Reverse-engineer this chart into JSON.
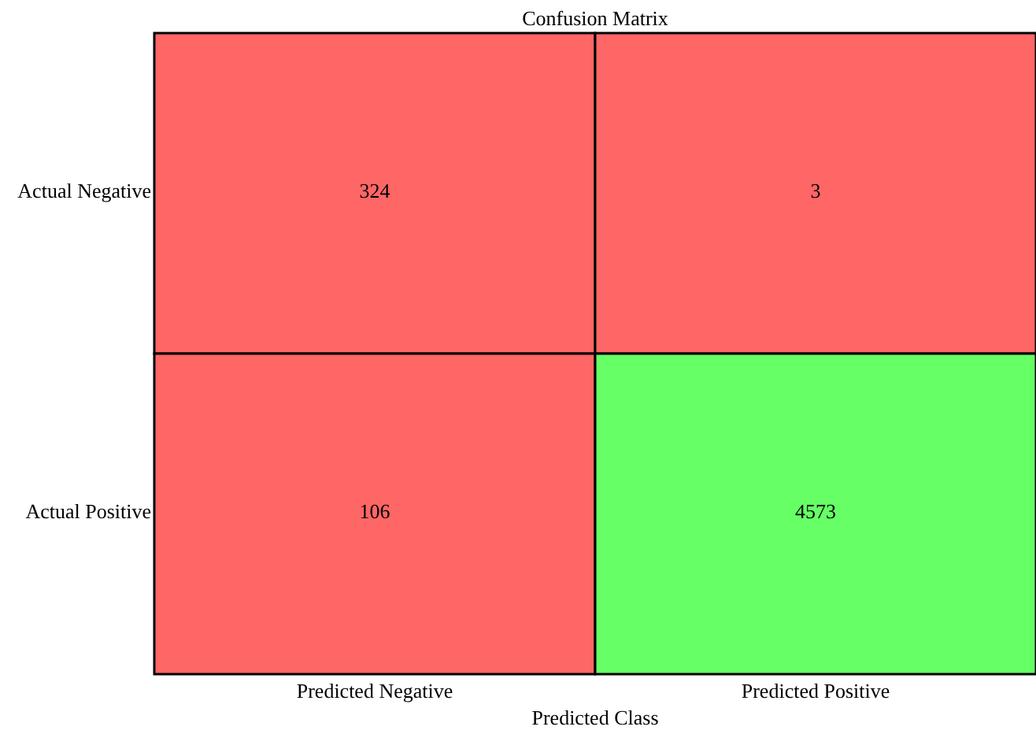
{
  "chart_data": {
    "type": "heatmap",
    "title": "Confusion Matrix",
    "xlabel": "Predicted Class",
    "categories": [
      "Predicted Negative",
      "Predicted Positive"
    ],
    "y_categories": [
      "Actual Negative",
      "Actual Positive"
    ],
    "cells": [
      [
        324,
        3
      ],
      [
        106,
        4573
      ]
    ],
    "data_labels": true,
    "colors": [
      [
        "#ff6666",
        "#ff6666"
      ],
      [
        "#ff6666",
        "#66ff66"
      ]
    ]
  }
}
